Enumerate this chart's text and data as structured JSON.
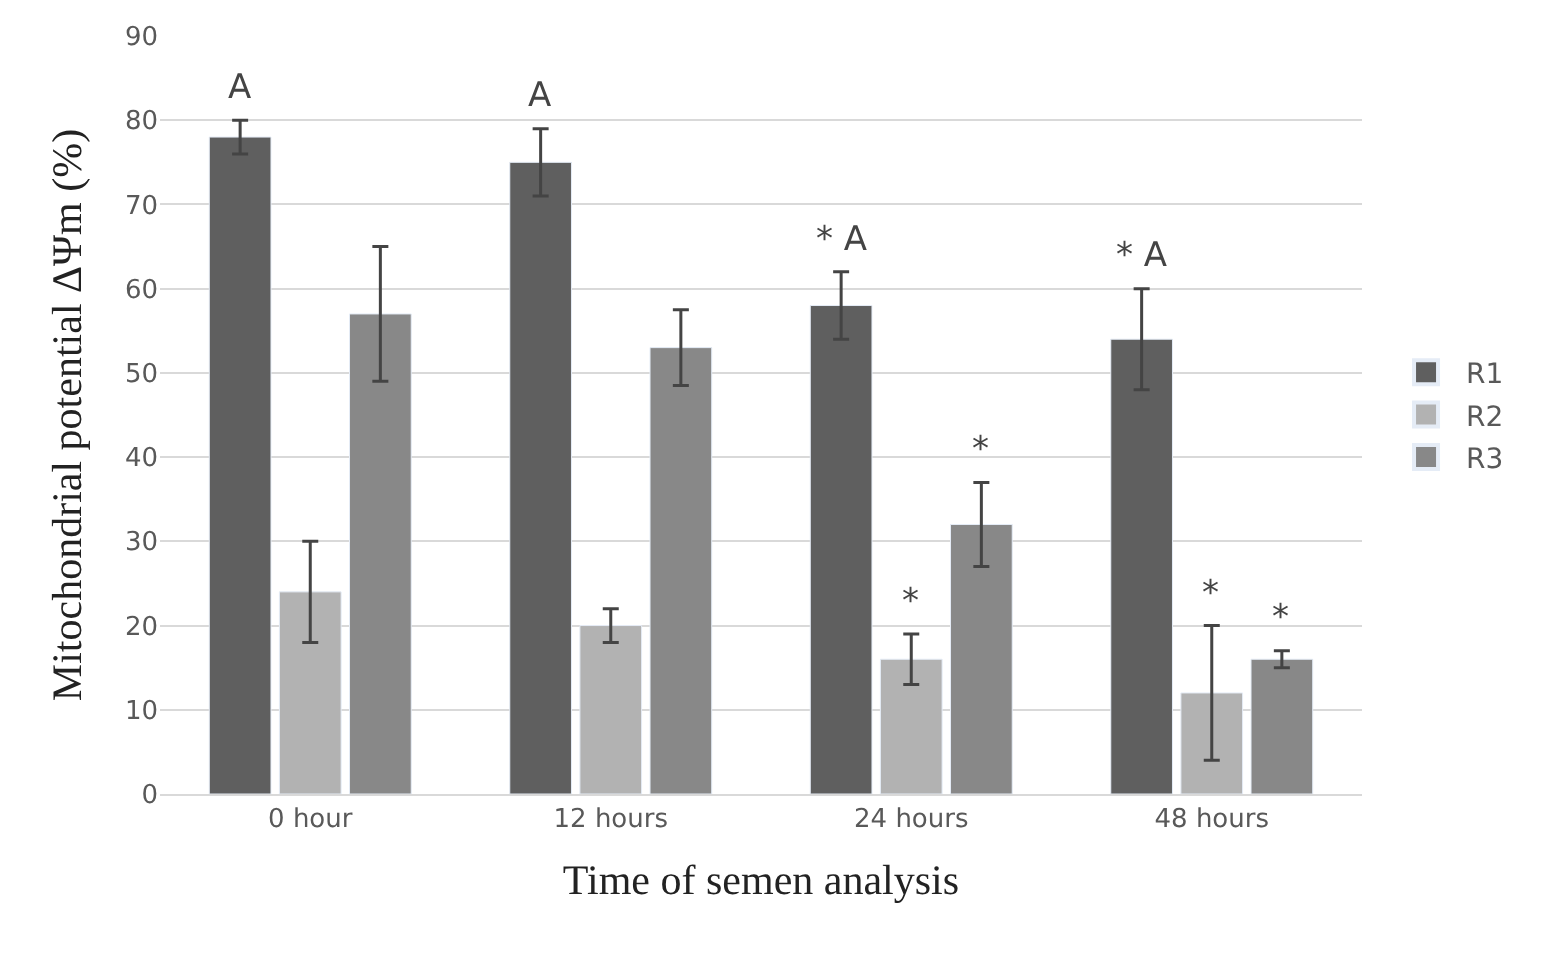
{
  "chart_data": {
    "type": "bar",
    "xlabel": "Time of semen analysis",
    "ylabel": "Mitochondrial potential ΔΨm (%)",
    "categories": [
      "0 hour",
      "12 hours",
      "24 hours",
      "48 hours"
    ],
    "series": [
      {
        "name": "R1",
        "color": "#5f5f5f",
        "values": [
          78,
          75,
          58,
          54
        ],
        "errors": [
          2,
          4,
          4,
          6
        ],
        "value_labels": [
          "A",
          "A",
          "* A",
          "* A"
        ]
      },
      {
        "name": "R2",
        "color": "#b2b2b2",
        "values": [
          24,
          20,
          16,
          12
        ],
        "errors": [
          6,
          2,
          3,
          8
        ],
        "value_labels": [
          null,
          null,
          "*",
          "*"
        ]
      },
      {
        "name": "R3",
        "color": "#888888",
        "values": [
          57,
          53,
          32,
          16
        ],
        "errors": [
          8,
          4.5,
          5,
          1
        ],
        "value_labels": [
          null,
          null,
          "*",
          "*"
        ]
      }
    ],
    "ylim": [
      0,
      90
    ],
    "yticks": [
      0,
      10,
      20,
      30,
      40,
      50,
      60,
      70,
      80,
      90
    ],
    "grid": "y",
    "legend": "right"
  }
}
